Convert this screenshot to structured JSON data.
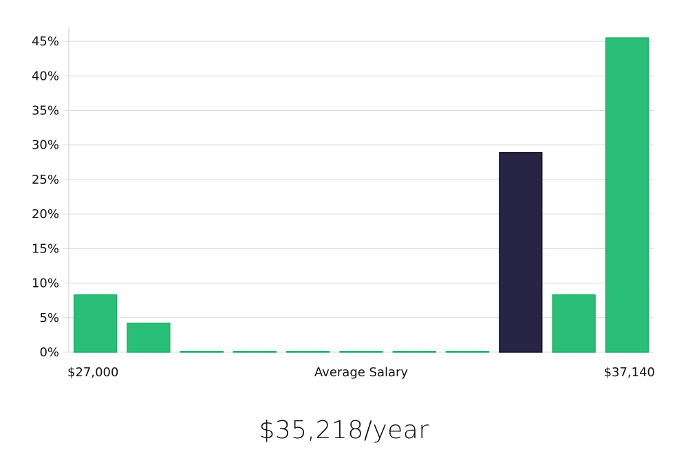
{
  "chart_data": {
    "type": "bar",
    "title": "",
    "xlabel": "Average Salary",
    "ylabel": "",
    "x_start_label": "$27,000",
    "x_end_label": "$37,140",
    "ylim": [
      0,
      47
    ],
    "yticks": [
      0,
      5,
      10,
      15,
      20,
      25,
      30,
      35,
      40,
      45
    ],
    "ytick_suffix": "%",
    "values": [
      8.3,
      4.2,
      0,
      0,
      0,
      0,
      0,
      0,
      28.9,
      8.3,
      45.5
    ],
    "highlight_index": 8,
    "colors": {
      "bar": "#2abf78",
      "bar_stroke": "#1fae68",
      "highlight": "#272444",
      "highlight_stroke": "#15132a"
    }
  },
  "summary": {
    "average_salary_text": "$35,218/year"
  }
}
